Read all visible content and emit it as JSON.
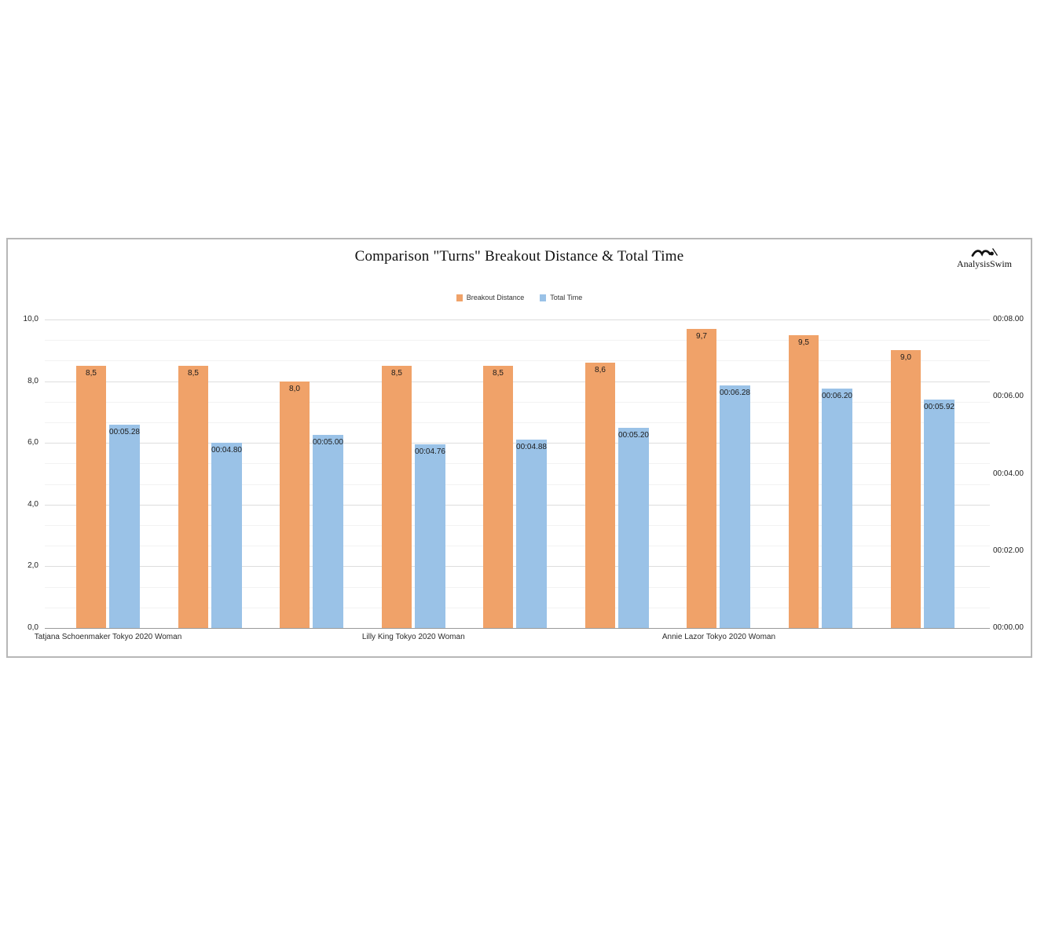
{
  "card": {
    "title": "Comparison \"Turns\" Breakout Distance & Total Time",
    "brand": "AnalysisSwim"
  },
  "legend": [
    {
      "label": "Breakout Distance",
      "color": "#F0A269"
    },
    {
      "label": "Total Time",
      "color": "#9AC2E7"
    }
  ],
  "chart_data": {
    "type": "bar",
    "title": "Comparison \"Turns\" Breakout Distance & Total Time",
    "legend_position": "top-center",
    "grid": true,
    "series": [
      {
        "name": "Breakout Distance",
        "axis": "left",
        "color": "#F0A269",
        "unit": "meters"
      },
      {
        "name": "Total Time",
        "axis": "right",
        "color": "#9AC2E7",
        "unit": "mm:ss.hh"
      }
    ],
    "left_axis": {
      "min": 0,
      "max": 10,
      "ticks": [
        "10,0",
        "8,0",
        "6,0",
        "4,0",
        "2,0",
        "0,0"
      ]
    },
    "right_axis": {
      "min": 0,
      "max": 8,
      "ticks": [
        "00:08.00",
        "00:06.00",
        "00:04.00",
        "00:02.00",
        "00:00.00"
      ]
    },
    "groups": [
      {
        "athlete": "Tatjana Schoenmaker Tokyo 2020 Woman",
        "turns": [
          {
            "breakout_distance": 8.5,
            "breakout_distance_label": "8,5",
            "total_time_seconds": 5.28,
            "total_time_label": "00:05.28"
          },
          {
            "breakout_distance": 8.5,
            "breakout_distance_label": "8,5",
            "total_time_seconds": 4.8,
            "total_time_label": "00:04.80"
          },
          {
            "breakout_distance": 8.0,
            "breakout_distance_label": "8,0",
            "total_time_seconds": 5.0,
            "total_time_label": "00:05.00"
          }
        ]
      },
      {
        "athlete": "Lilly King Tokyo 2020 Woman",
        "turns": [
          {
            "breakout_distance": 8.5,
            "breakout_distance_label": "8,5",
            "total_time_seconds": 4.76,
            "total_time_label": "00:04.76"
          },
          {
            "breakout_distance": 8.5,
            "breakout_distance_label": "8,5",
            "total_time_seconds": 4.88,
            "total_time_label": "00:04.88"
          },
          {
            "breakout_distance": 8.6,
            "breakout_distance_label": "8,6",
            "total_time_seconds": 5.2,
            "total_time_label": "00:05.20"
          }
        ]
      },
      {
        "athlete": "Annie Lazor Tokyo 2020 Woman",
        "turns": [
          {
            "breakout_distance": 9.7,
            "breakout_distance_label": "9,7",
            "total_time_seconds": 6.28,
            "total_time_label": "00:06.28"
          },
          {
            "breakout_distance": 9.5,
            "breakout_distance_label": "9,5",
            "total_time_seconds": 6.2,
            "total_time_label": "00:06.20"
          },
          {
            "breakout_distance": 9.0,
            "breakout_distance_label": "9,0",
            "total_time_seconds": 5.92,
            "total_time_label": "00:05.92"
          }
        ]
      }
    ]
  }
}
